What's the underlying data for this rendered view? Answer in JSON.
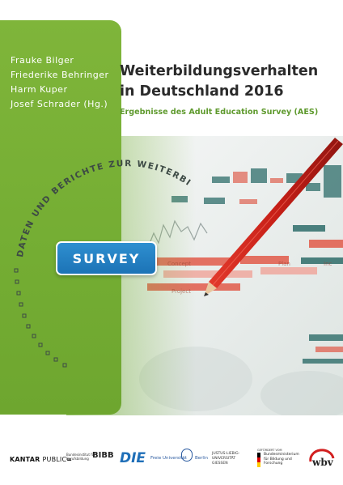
{
  "authors": [
    "Frauke Bilger",
    "Friederike Behringer",
    "Harm Kuper",
    "Josef Schrader (Hg.)"
  ],
  "title_line1": "Weiterbildungsverhalten",
  "title_line2": "in Deutschland 2016",
  "subtitle": "Ergebnisse des Adult Education Survey (AES)",
  "series_name": "DATEN UND BERICHTE ZUR WEITERBILDUNG",
  "badge": "SURVEY",
  "logos": {
    "kantar_bold": "KANTAR",
    "kantar_light": "PUBLIC",
    "bibb_small": "Bundesinstitut für Berufsbildung",
    "bibb_mark": "BIBB",
    "die_mark": "DIE",
    "fu_text": "Freie Universität",
    "fu_city": "Berlin",
    "jlu_text": "JUSTUS-LIEBIG-UNIVERSITÄT GIESSEN",
    "bmbf_small": "GEFÖRDERT VOM",
    "bmbf_text": "Bundesministerium für Bildung und Forschung",
    "wbv": "wbv"
  },
  "colors": {
    "green": "#78b23a",
    "subtitle_green": "#5f9a2e",
    "badge_blue": "#1f7bc0",
    "title_text": "#2b2b2b"
  }
}
